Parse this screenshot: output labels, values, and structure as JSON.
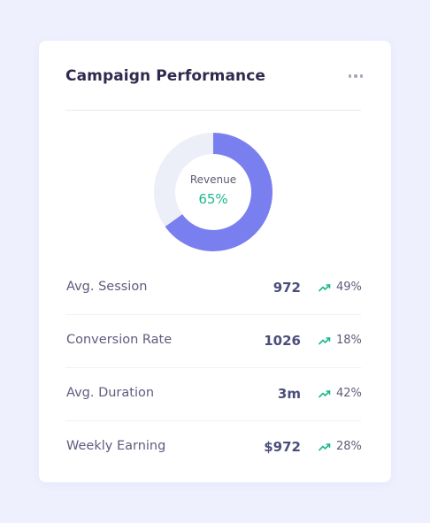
{
  "card": {
    "title": "Campaign Performance",
    "menu_icon": "more-horizontal-icon"
  },
  "donut": {
    "label": "Revenue",
    "value_text": "65%",
    "fraction": 0.65,
    "colors": {
      "filled": "#7a7ff0",
      "track": "#eceef8",
      "value_text": "#1fb68f"
    }
  },
  "stats": [
    {
      "label": "Avg. Session",
      "value": "972",
      "change": "49%",
      "trend_icon": "trending-up-icon"
    },
    {
      "label": "Conversion Rate",
      "value": "1026",
      "change": "18%",
      "trend_icon": "trending-up-icon"
    },
    {
      "label": "Avg. Duration",
      "value": "3m",
      "change": "42%",
      "trend_icon": "trending-up-icon"
    },
    {
      "label": "Weekly Earning",
      "value": "$972",
      "change": "28%",
      "trend_icon": "trending-up-icon"
    }
  ],
  "colors": {
    "background": "#eef0fd",
    "card": "#ffffff",
    "trend_up": "#1fb68f"
  }
}
